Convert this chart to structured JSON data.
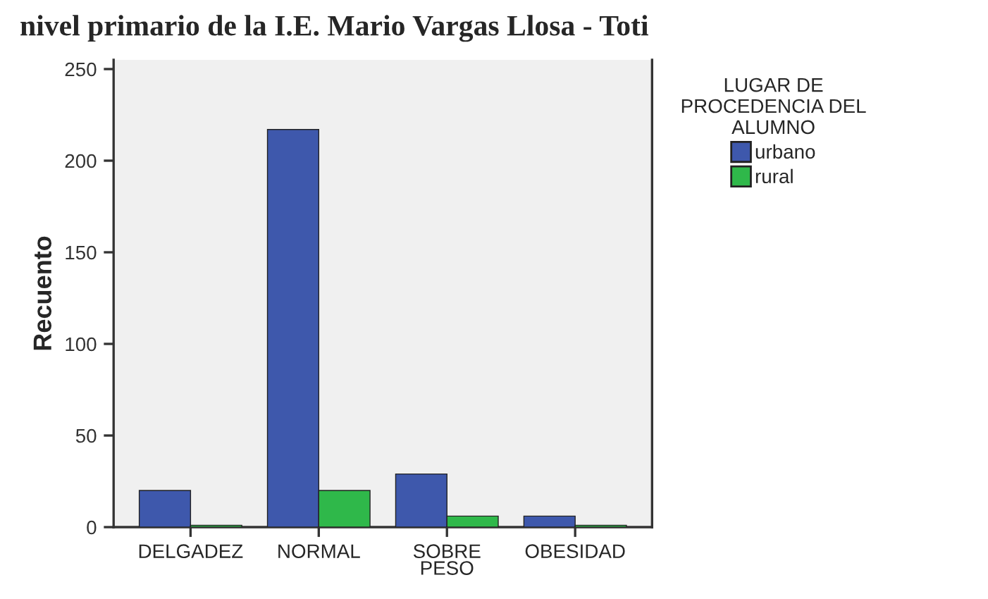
{
  "chart_data": {
    "type": "bar",
    "title": "nivel primario de la I.E. Mario Vargas Llosa - Toti",
    "ylabel": "Recuento",
    "legend_title": "LUGAR DE\nPROCEDENCIA DEL\nALUMNO",
    "categories": [
      "DELGADEZ",
      "NORMAL",
      "SOBRE\nPESO",
      "OBESIDAD"
    ],
    "series": [
      {
        "name": "urbano",
        "color": "#3e58ac",
        "values": [
          20,
          217,
          29,
          6
        ]
      },
      {
        "name": "rural",
        "color": "#2fb84a",
        "values": [
          1,
          20,
          6,
          1
        ]
      }
    ],
    "ylim": [
      0,
      255
    ],
    "yticks": [
      0,
      50,
      100,
      150,
      200,
      250
    ],
    "grid": false,
    "legend": "right"
  }
}
